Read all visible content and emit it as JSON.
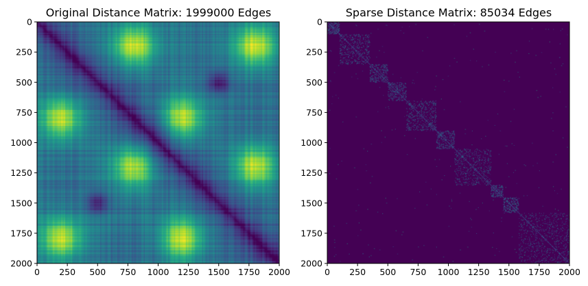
{
  "chart_data": [
    {
      "type": "heatmap",
      "title": "Original Distance Matrix: 1999000 Edges",
      "xlabel": "",
      "ylabel": "",
      "xlim": [
        0,
        2000
      ],
      "ylim": [
        2000,
        0
      ],
      "xticks": [
        "0",
        "250",
        "500",
        "750",
        "1000",
        "1250",
        "1500",
        "1750",
        "2000"
      ],
      "yticks": [
        "0",
        "250",
        "500",
        "750",
        "1000",
        "1250",
        "1500",
        "1750",
        "2000"
      ],
      "colormap": "viridis",
      "grid": false,
      "legend": "none",
      "matrix_size": 2000,
      "dark_diagonal": true,
      "bright_regions": [
        {
          "x": 800,
          "y": 200
        },
        {
          "x": 200,
          "y": 800
        },
        {
          "x": 1800,
          "y": 1200
        },
        {
          "x": 1200,
          "y": 1800
        },
        {
          "x": 1800,
          "y": 200
        },
        {
          "x": 200,
          "y": 1800
        },
        {
          "x": 800,
          "y": 1200
        },
        {
          "x": 1200,
          "y": 800
        }
      ],
      "dark_regions": [
        {
          "x": 1500,
          "y": 500
        },
        {
          "x": 500,
          "y": 1500
        }
      ]
    },
    {
      "type": "heatmap",
      "title": "Sparse Distance Matrix: 85034 Edges",
      "xlabel": "",
      "ylabel": "",
      "xlim": [
        0,
        2000
      ],
      "ylim": [
        2000,
        0
      ],
      "xticks": [
        "0",
        "250",
        "500",
        "750",
        "1000",
        "1250",
        "1500",
        "1750",
        "2000"
      ],
      "yticks": [
        "0",
        "250",
        "500",
        "750",
        "1000",
        "1250",
        "1500",
        "1750",
        "2000"
      ],
      "colormap": "viridis",
      "grid": false,
      "legend": "none",
      "matrix_size": 2000,
      "edge_blocks": [
        [
          0,
          100
        ],
        [
          100,
          350
        ],
        [
          350,
          500
        ],
        [
          500,
          650
        ],
        [
          650,
          900
        ],
        [
          900,
          1050
        ],
        [
          1050,
          1350
        ],
        [
          1350,
          1450
        ],
        [
          1450,
          1580
        ],
        [
          1580,
          2000
        ]
      ]
    }
  ],
  "colors": {
    "viridis_low": "#440154",
    "viridis_mid": "#21918c",
    "viridis_high": "#fde725",
    "axes_edge": "#000000",
    "background": "#ffffff"
  }
}
